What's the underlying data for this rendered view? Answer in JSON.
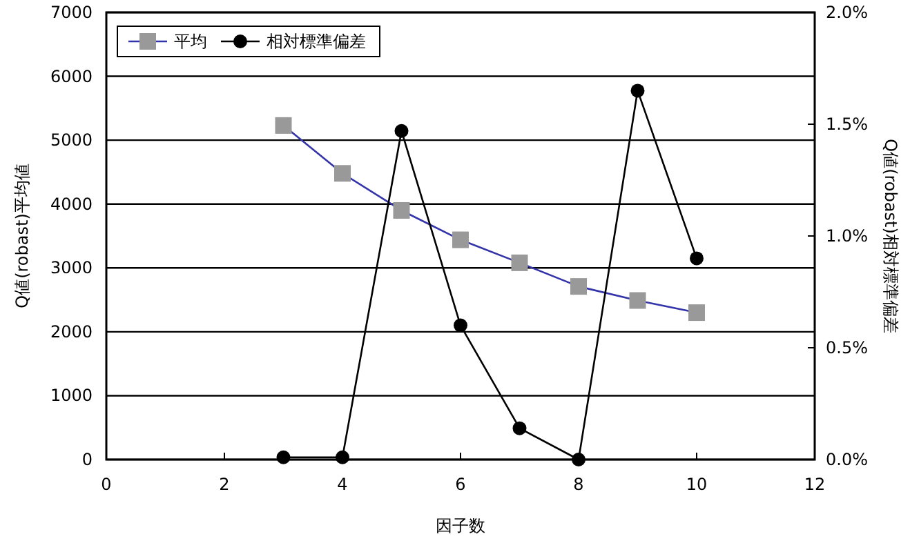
{
  "chart_data": {
    "type": "line",
    "xlabel": "因子数",
    "ylabel": "Q値(robast)平均値",
    "y2label": "Q値(robast)相対標準偏差",
    "x": [
      3,
      4,
      5,
      6,
      7,
      8,
      9,
      10
    ],
    "series": [
      {
        "name": "平均",
        "color": "#3333aa",
        "colors": [
          "#999999",
          "#999999",
          "#999999",
          "#999999",
          "#999999",
          "#999999",
          "#999999",
          "#999999"
        ],
        "marker": "square",
        "values": [
          5230,
          4480,
          3900,
          3440,
          3080,
          2710,
          2490,
          2300
        ]
      },
      {
        "name": "相対標準偏差",
        "color": "#000000",
        "colors": [
          "#000000",
          "#000000",
          "#000000",
          "#000000",
          "#000000",
          "#000000",
          "#000000",
          "#000000"
        ],
        "marker": "circle",
        "axis": "y2",
        "values": [
          0.01,
          0.01,
          1.47,
          0.6,
          0.14,
          0.0,
          1.65,
          0.9
        ]
      }
    ],
    "xlim": [
      0,
      12
    ],
    "xticks": [
      0,
      2,
      4,
      6,
      8,
      10,
      12
    ],
    "ylim": [
      0,
      7000
    ],
    "yticks": [
      0,
      1000,
      2000,
      3000,
      4000,
      5000,
      6000,
      7000
    ],
    "y2lim": [
      0,
      2.0
    ],
    "y2ticks": [
      {
        "value": 0,
        "label": "0.0%"
      },
      {
        "value": 0.5,
        "label": "0.5%"
      },
      {
        "value": 1.0,
        "label": "1.0%"
      },
      {
        "value": 1.5,
        "label": "1.5%"
      },
      {
        "value": 2.0,
        "label": "2.0%"
      }
    ],
    "grid": "y",
    "legend": "top left"
  }
}
